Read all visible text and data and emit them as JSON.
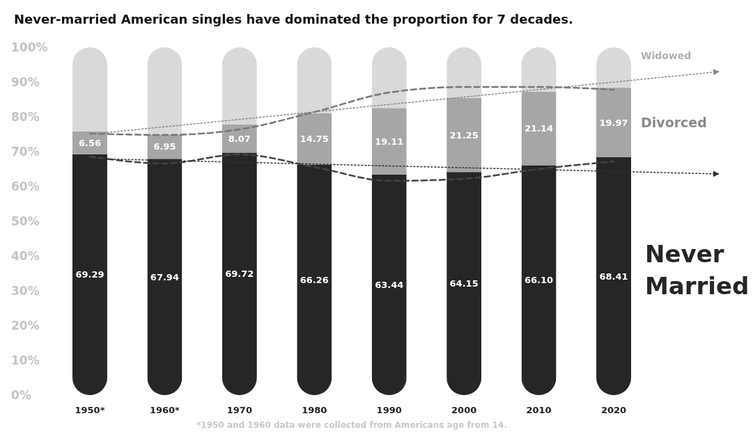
{
  "chart_data": {
    "type": "bar",
    "stacked": true,
    "title": "Never-married American singles have dominated the proportion for 7 decades.",
    "categories": [
      "1950*",
      "1960*",
      "1970",
      "1980",
      "1990",
      "2000",
      "2010",
      "2020"
    ],
    "ylim": [
      0,
      100
    ],
    "yticks": [
      {
        "value": 0,
        "label": "0%"
      },
      {
        "value": 10,
        "label": "10%"
      },
      {
        "value": 20,
        "label": "20%"
      },
      {
        "value": 30,
        "label": "30%"
      },
      {
        "value": 40,
        "label": "40%"
      },
      {
        "value": 50,
        "label": "50%"
      },
      {
        "value": 60,
        "label": "60%"
      },
      {
        "value": 70,
        "label": "70%"
      },
      {
        "value": 80,
        "label": "80%"
      },
      {
        "value": 90,
        "label": "90%"
      },
      {
        "value": 100,
        "label": "100%"
      }
    ],
    "grid": false,
    "legend": false,
    "series": [
      {
        "name": "Never Married",
        "color": "#262626",
        "values": [
          69.29,
          67.94,
          69.72,
          66.26,
          63.44,
          64.15,
          66.1,
          68.41
        ],
        "value_labels": [
          "69.29",
          "67.94",
          "69.72",
          "66.26",
          "63.44",
          "64.15",
          "66.10",
          "68.41"
        ]
      },
      {
        "name": "Divorced",
        "color": "#a6a6a6",
        "values": [
          6.56,
          6.95,
          8.07,
          14.75,
          19.11,
          21.25,
          21.14,
          19.97
        ],
        "value_labels": [
          "6.56",
          "6.95",
          "8.07",
          "14.75",
          "19.11",
          "21.25",
          "21.14",
          "19.97"
        ]
      },
      {
        "name": "Widowed",
        "color": "#d9d9d9",
        "values": [
          24.2,
          25.1,
          22.2,
          19,
          17.5,
          14.6,
          12.8,
          11.6
        ]
      },
      {
        "type": "line",
        "color": "#777777",
        "line_style": "dashed",
        "values": [
          75.2,
          74.8,
          76.4,
          81.4,
          87,
          88.6,
          88.6,
          87.8
        ]
      },
      {
        "type": "line",
        "color": "#444444",
        "line_style": "dashed",
        "values": [
          68.6,
          66.6,
          69.2,
          65.6,
          61.6,
          62.2,
          65,
          67.2
        ]
      },
      {
        "type": "line",
        "color": "#888888",
        "line_style": "dotted",
        "values": [
          75,
          null,
          null,
          null,
          null,
          null,
          null,
          90
        ]
      },
      {
        "type": "line",
        "color": "#333333",
        "line_style": "dotted",
        "values": [
          68,
          null,
          null,
          null,
          65.9,
          null,
          null,
          null
        ]
      }
    ],
    "annotations": [
      "*1950 and 1960 data were collected from Americans age from 14."
    ]
  }
}
